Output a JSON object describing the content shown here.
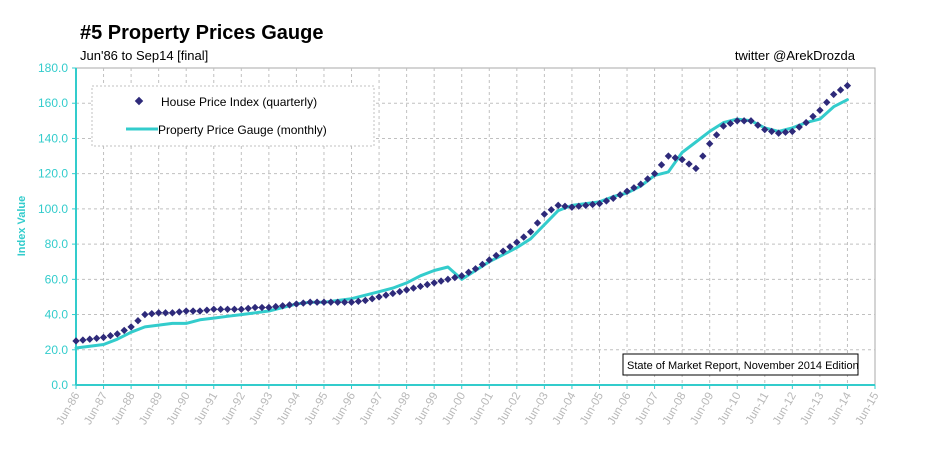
{
  "header": {
    "title": "#5 Property Prices Gauge",
    "subtitle": "Jun'86 to Sep14 [final]",
    "credit": "twitter @ArekDrozda"
  },
  "footnote": "State of Market Report, November 2014 Edition",
  "colors": {
    "accent": "#33cccc",
    "markers": "#2e2a7a",
    "grid": "#c0c0c0",
    "tick_text": "#b8b8b8"
  },
  "chart_data": {
    "type": "line",
    "title": "#5 Property Prices Gauge",
    "ylabel": "Index Value",
    "xlabel": "",
    "ylim": [
      0,
      180
    ],
    "xlim": [
      1986.5,
      2015.5
    ],
    "grid": true,
    "legend_position": "top-left",
    "x_ticks": [
      "Jun-86",
      "Jun-87",
      "Jun-88",
      "Jun-89",
      "Jun-90",
      "Jun-91",
      "Jun-92",
      "Jun-93",
      "Jun-94",
      "Jun-95",
      "Jun-96",
      "Jun-97",
      "Jun-98",
      "Jun-99",
      "Jun-00",
      "Jun-01",
      "Jun-02",
      "Jun-03",
      "Jun-04",
      "Jun-05",
      "Jun-06",
      "Jun-07",
      "Jun-08",
      "Jun-09",
      "Jun-10",
      "Jun-11",
      "Jun-12",
      "Jun-13",
      "Jun-14",
      "Jun-15"
    ],
    "y_ticks": [
      "0.0",
      "20.0",
      "40.0",
      "60.0",
      "80.0",
      "100.0",
      "120.0",
      "140.0",
      "160.0",
      "180.0"
    ],
    "series": [
      {
        "name": "House Price Index (quarterly)",
        "style": "markers",
        "color": "#2e2a7a",
        "points": [
          [
            1986.5,
            25
          ],
          [
            1987.0,
            26
          ],
          [
            1987.5,
            27
          ],
          [
            1988.0,
            29
          ],
          [
            1988.5,
            33
          ],
          [
            1989.0,
            40
          ],
          [
            1989.5,
            41
          ],
          [
            1990.0,
            41
          ],
          [
            1990.5,
            42
          ],
          [
            1991.0,
            42
          ],
          [
            1991.5,
            43
          ],
          [
            1992.0,
            43
          ],
          [
            1992.5,
            43
          ],
          [
            1993.0,
            44
          ],
          [
            1993.5,
            44
          ],
          [
            1994.0,
            45
          ],
          [
            1994.5,
            46
          ],
          [
            1995.0,
            47
          ],
          [
            1995.5,
            47
          ],
          [
            1996.0,
            47
          ],
          [
            1996.5,
            47
          ],
          [
            1997.0,
            48
          ],
          [
            1997.5,
            50
          ],
          [
            1998.0,
            52
          ],
          [
            1998.5,
            54
          ],
          [
            1999.0,
            56
          ],
          [
            1999.5,
            58
          ],
          [
            2000.0,
            60
          ],
          [
            2000.5,
            62
          ],
          [
            2001.0,
            66
          ],
          [
            2001.5,
            71
          ],
          [
            2002.0,
            76
          ],
          [
            2002.5,
            81
          ],
          [
            2003.0,
            87
          ],
          [
            2003.5,
            97
          ],
          [
            2004.0,
            102
          ],
          [
            2004.5,
            101
          ],
          [
            2005.0,
            102
          ],
          [
            2005.5,
            103
          ],
          [
            2006.0,
            106
          ],
          [
            2006.5,
            110
          ],
          [
            2007.0,
            114
          ],
          [
            2007.5,
            120
          ],
          [
            2008.0,
            130
          ],
          [
            2008.5,
            128
          ],
          [
            2009.0,
            123
          ],
          [
            2009.5,
            137
          ],
          [
            2010.0,
            147
          ],
          [
            2010.5,
            150
          ],
          [
            2011.0,
            150
          ],
          [
            2011.5,
            145
          ],
          [
            2012.0,
            143
          ],
          [
            2012.5,
            144
          ],
          [
            2013.0,
            149
          ],
          [
            2013.5,
            156
          ],
          [
            2014.0,
            165
          ],
          [
            2014.5,
            170
          ]
        ]
      },
      {
        "name": "Property Price Gauge (monthly)",
        "style": "line",
        "color": "#33cccc",
        "points": [
          [
            1986.5,
            21
          ],
          [
            1987.0,
            22
          ],
          [
            1987.5,
            23
          ],
          [
            1988.0,
            26
          ],
          [
            1988.5,
            30
          ],
          [
            1989.0,
            33
          ],
          [
            1989.5,
            34
          ],
          [
            1990.0,
            35
          ],
          [
            1990.5,
            35
          ],
          [
            1991.0,
            37
          ],
          [
            1991.5,
            38
          ],
          [
            1992.0,
            39
          ],
          [
            1992.5,
            40
          ],
          [
            1993.0,
            41
          ],
          [
            1993.5,
            42
          ],
          [
            1994.0,
            44
          ],
          [
            1994.5,
            46
          ],
          [
            1995.0,
            47
          ],
          [
            1995.5,
            47
          ],
          [
            1996.0,
            48
          ],
          [
            1996.5,
            49
          ],
          [
            1997.0,
            51
          ],
          [
            1997.5,
            53
          ],
          [
            1998.0,
            55
          ],
          [
            1998.5,
            58
          ],
          [
            1999.0,
            62
          ],
          [
            1999.5,
            65
          ],
          [
            2000.0,
            67
          ],
          [
            2000.5,
            60
          ],
          [
            2001.0,
            65
          ],
          [
            2001.5,
            70
          ],
          [
            2002.0,
            74
          ],
          [
            2002.5,
            78
          ],
          [
            2003.0,
            83
          ],
          [
            2003.5,
            91
          ],
          [
            2004.0,
            99
          ],
          [
            2004.5,
            102
          ],
          [
            2005.0,
            103
          ],
          [
            2005.5,
            104
          ],
          [
            2006.0,
            107
          ],
          [
            2006.5,
            109
          ],
          [
            2007.0,
            113
          ],
          [
            2007.5,
            119
          ],
          [
            2008.0,
            121
          ],
          [
            2008.5,
            132
          ],
          [
            2009.0,
            138
          ],
          [
            2009.5,
            144
          ],
          [
            2010.0,
            149
          ],
          [
            2010.5,
            151
          ],
          [
            2011.0,
            150
          ],
          [
            2011.5,
            146
          ],
          [
            2012.0,
            144
          ],
          [
            2012.5,
            146
          ],
          [
            2013.0,
            149
          ],
          [
            2013.5,
            151
          ],
          [
            2014.0,
            158
          ],
          [
            2014.5,
            162
          ]
        ]
      }
    ]
  }
}
